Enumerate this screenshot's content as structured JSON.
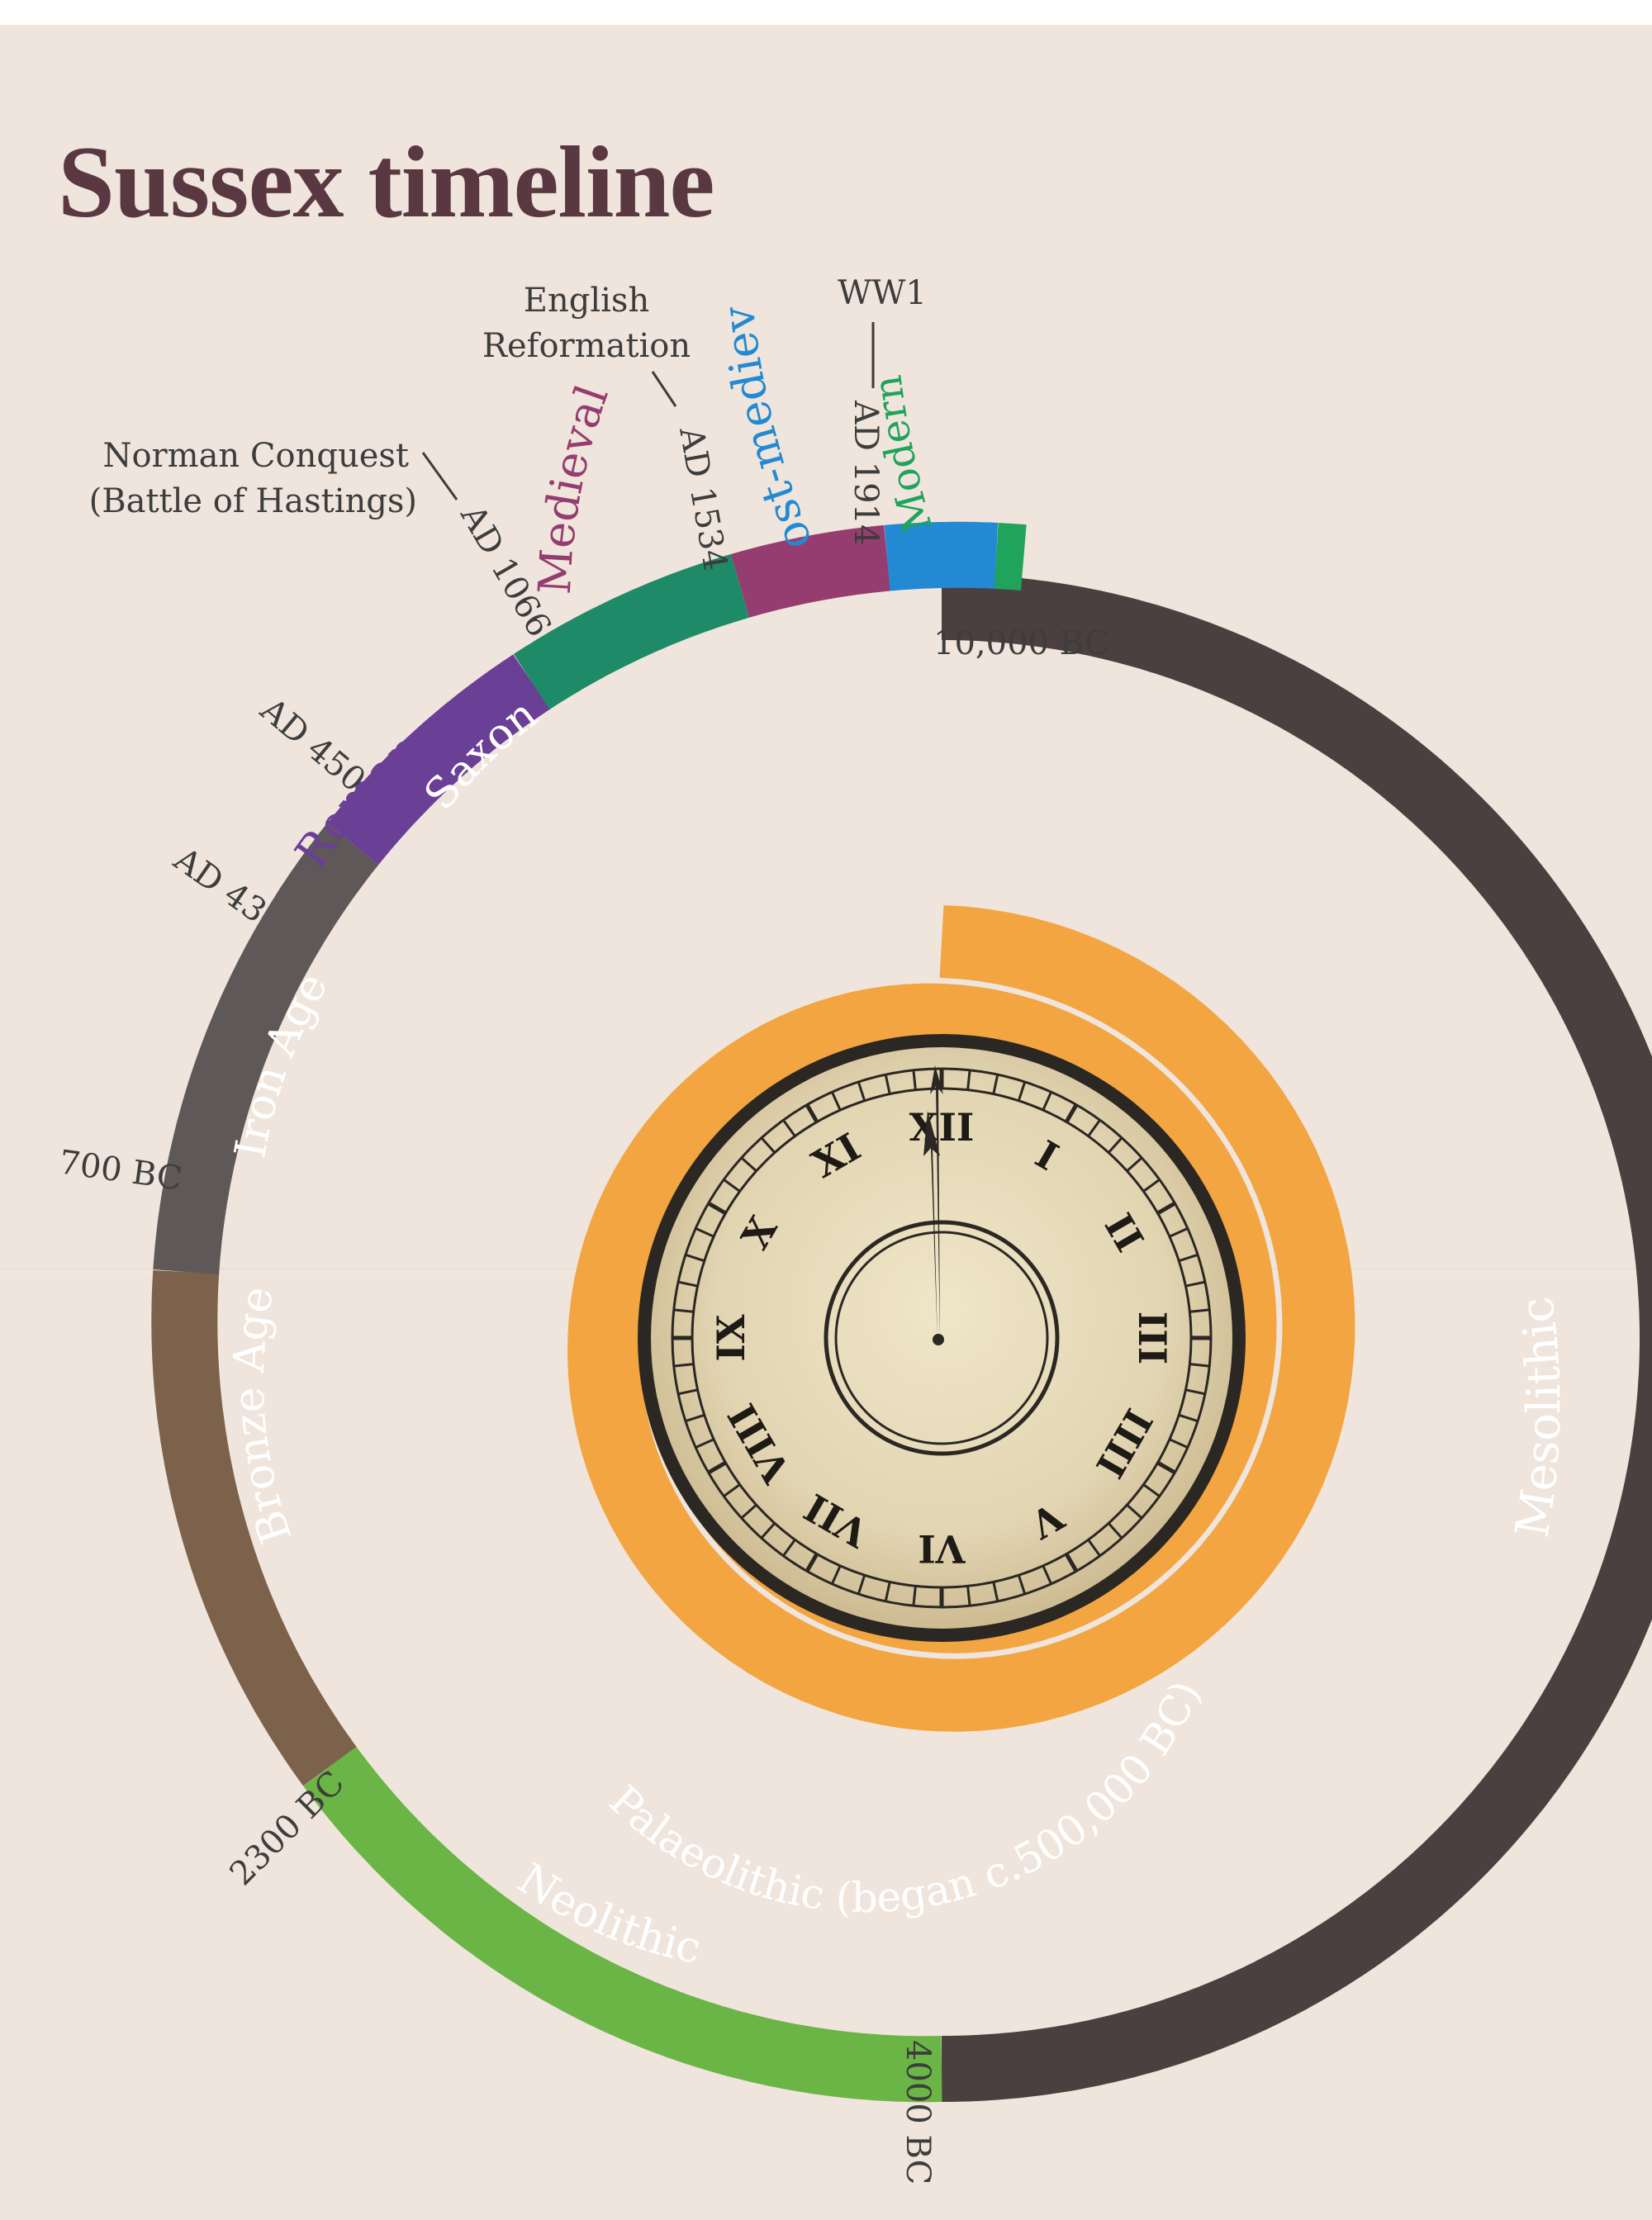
{
  "title": "Sussex timeline",
  "colors": {
    "palaeolithic": "#f2a541",
    "mesolithic": "#4b3f40",
    "neolithic": "#6ab545",
    "bronze": "#7d624b",
    "iron": "#5f5858",
    "roman": "#6a3f96",
    "saxon": "#1e8a68",
    "medieval": "#953d70",
    "post_medieval": "#2389d2",
    "modern": "#20a35b",
    "label_gray": "#3d3d3d"
  },
  "periods": [
    {
      "name": "Mesolithic",
      "color": "#4b3f40"
    },
    {
      "name": "Neolithic",
      "color": "#6ab545"
    },
    {
      "name": "Bronze Age",
      "color": "#7d624b"
    },
    {
      "name": "Iron Age",
      "color": "#5f5858"
    },
    {
      "name": "Roman",
      "color": "#6a3f96"
    },
    {
      "name": "Saxon",
      "color": "#1e8a68"
    },
    {
      "name": "Medieval",
      "color": "#953d70"
    },
    {
      "name": "Post-medieval",
      "color": "#2389d2"
    },
    {
      "name": "Modern",
      "color": "#20a35b"
    }
  ],
  "palaeolithic_label": "Palaeolithic (began c.500,000 BC)",
  "dates": {
    "bc10000": "10,000 BC",
    "bc4000": "4000 BC",
    "bc2300": "2300 BC",
    "bc700": "700 BC",
    "ad43": "AD 43",
    "ad450": "AD 450",
    "ad1066": "AD 1066",
    "ad1534": "AD 1534",
    "ad1914": "AD 1914"
  },
  "events": {
    "norman_line1": "Norman Conquest",
    "norman_line2": "(Battle of Hastings)",
    "reformation_line1": "English",
    "reformation_line2": "Reformation",
    "ww1": "WW1"
  },
  "clock": {
    "numerals": [
      "XII",
      "I",
      "II",
      "III",
      "IIII",
      "V",
      "VI",
      "VII",
      "VIII",
      "IX",
      "X",
      "XI"
    ]
  }
}
